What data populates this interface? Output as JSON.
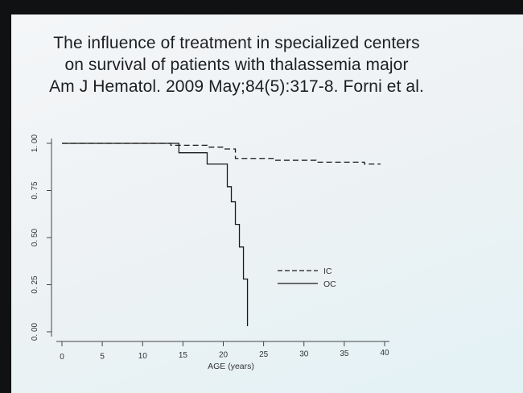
{
  "slide": {
    "title_lines": [
      "The influence of treatment in specialized centers",
      "on survival of patients with thalassemia major",
      "Am J Hematol. 2009 May;84(5):317-8. Forni et al."
    ]
  },
  "chart_data": {
    "type": "line",
    "title": "",
    "xlabel": "AGE (years)",
    "ylabel": "",
    "xlim": [
      0,
      40
    ],
    "ylim": [
      0,
      1
    ],
    "x_ticks": [
      0,
      5,
      10,
      15,
      20,
      25,
      30,
      35,
      40
    ],
    "x_tick_labels": [
      "0",
      "5",
      "10",
      "15",
      "20",
      "25",
      "30",
      "35",
      "40"
    ],
    "y_ticks": [
      0,
      0.25,
      0.5,
      0.75,
      1.0
    ],
    "y_tick_labels": [
      "0. 00",
      "0. 25",
      "0. 50",
      "0. 75",
      "1. 00"
    ],
    "legend_position": "right",
    "series": [
      {
        "name": "IC",
        "style": "dashed",
        "step": true,
        "x": [
          0,
          13.5,
          18,
          20,
          21.5,
          26.5,
          31.5,
          37.5
        ],
        "y": [
          1.0,
          0.99,
          0.98,
          0.97,
          0.92,
          0.91,
          0.9,
          0.89
        ]
      },
      {
        "name": "OC",
        "style": "solid",
        "step": true,
        "x": [
          0,
          14.5,
          17,
          18,
          20.5,
          21,
          21.5,
          22,
          22.5,
          23
        ],
        "y": [
          1.0,
          0.95,
          0.95,
          0.89,
          0.77,
          0.69,
          0.57,
          0.45,
          0.28,
          0.2
        ],
        "end_x": 23,
        "end_y": 0.03
      }
    ]
  }
}
